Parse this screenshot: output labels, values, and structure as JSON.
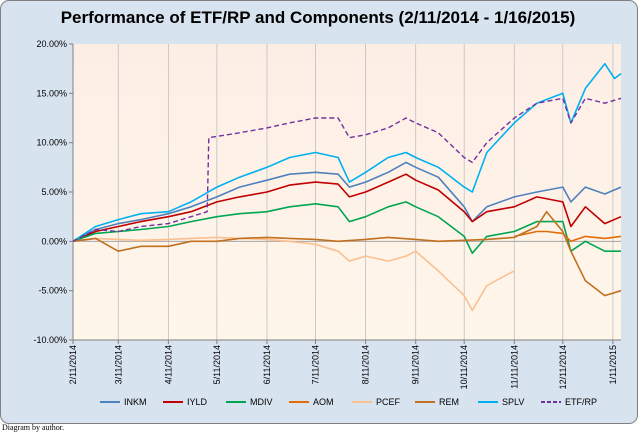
{
  "caption": "Diagram by author.",
  "chart_data": {
    "type": "line",
    "title": "Performance of ETF/RP and Components (2/11/2014  - 1/16/2015)",
    "xlabel": "",
    "ylabel": "",
    "ylim": [
      -0.1,
      0.2
    ],
    "y_ticks": [
      -0.1,
      -0.05,
      0.0,
      0.05,
      0.1,
      0.15,
      0.2
    ],
    "y_tick_labels": [
      "-10.00%",
      "-5.00%",
      "0.00%",
      "5.00%",
      "10.00%",
      "15.00%",
      "20.00%"
    ],
    "x_start": "2014-02-11",
    "x_end": "2015-01-16",
    "x_ticks": [
      "2014-02-11",
      "2014-03-11",
      "2014-04-11",
      "2014-05-11",
      "2014-06-11",
      "2014-07-11",
      "2014-08-11",
      "2014-09-11",
      "2014-10-11",
      "2014-11-11",
      "2014-12-11",
      "2015-01-11"
    ],
    "x_tick_labels": [
      "2/11/2014",
      "3/11/2014",
      "4/11/2014",
      "5/11/2014",
      "6/11/2014",
      "7/11/2014",
      "8/11/2014",
      "9/11/2014",
      "10/11/2014",
      "11/11/2014",
      "12/11/2014",
      "1/11/2015"
    ],
    "grid": "vertical",
    "legend_position": "bottom",
    "series": [
      {
        "name": "INKM",
        "color": "#4f81bd",
        "dash": false,
        "points": [
          [
            "2014-02-11",
            0.0
          ],
          [
            "2014-02-25",
            0.012
          ],
          [
            "2014-03-11",
            0.018
          ],
          [
            "2014-03-25",
            0.022
          ],
          [
            "2014-04-11",
            0.028
          ],
          [
            "2014-04-25",
            0.035
          ],
          [
            "2014-05-11",
            0.045
          ],
          [
            "2014-05-25",
            0.055
          ],
          [
            "2014-06-11",
            0.062
          ],
          [
            "2014-06-25",
            0.068
          ],
          [
            "2014-07-11",
            0.07
          ],
          [
            "2014-07-25",
            0.068
          ],
          [
            "2014-08-01",
            0.055
          ],
          [
            "2014-08-11",
            0.06
          ],
          [
            "2014-08-25",
            0.07
          ],
          [
            "2014-09-05",
            0.08
          ],
          [
            "2014-09-11",
            0.075
          ],
          [
            "2014-09-25",
            0.065
          ],
          [
            "2014-10-11",
            0.035
          ],
          [
            "2014-10-16",
            0.02
          ],
          [
            "2014-10-25",
            0.035
          ],
          [
            "2014-11-11",
            0.045
          ],
          [
            "2014-11-25",
            0.05
          ],
          [
            "2014-12-11",
            0.055
          ],
          [
            "2014-12-16",
            0.04
          ],
          [
            "2014-12-25",
            0.055
          ],
          [
            "2015-01-06",
            0.048
          ],
          [
            "2015-01-16",
            0.055
          ]
        ]
      },
      {
        "name": "IYLD",
        "color": "#c00000",
        "dash": false,
        "points": [
          [
            "2014-02-11",
            0.0
          ],
          [
            "2014-02-25",
            0.01
          ],
          [
            "2014-03-11",
            0.015
          ],
          [
            "2014-03-25",
            0.02
          ],
          [
            "2014-04-11",
            0.025
          ],
          [
            "2014-04-25",
            0.03
          ],
          [
            "2014-05-11",
            0.04
          ],
          [
            "2014-05-25",
            0.045
          ],
          [
            "2014-06-11",
            0.05
          ],
          [
            "2014-06-25",
            0.057
          ],
          [
            "2014-07-11",
            0.06
          ],
          [
            "2014-07-25",
            0.058
          ],
          [
            "2014-08-01",
            0.045
          ],
          [
            "2014-08-11",
            0.05
          ],
          [
            "2014-08-25",
            0.06
          ],
          [
            "2014-09-05",
            0.068
          ],
          [
            "2014-09-11",
            0.062
          ],
          [
            "2014-09-25",
            0.052
          ],
          [
            "2014-10-11",
            0.03
          ],
          [
            "2014-10-16",
            0.02
          ],
          [
            "2014-10-25",
            0.03
          ],
          [
            "2014-11-11",
            0.035
          ],
          [
            "2014-11-25",
            0.045
          ],
          [
            "2014-12-11",
            0.04
          ],
          [
            "2014-12-16",
            0.015
          ],
          [
            "2014-12-25",
            0.035
          ],
          [
            "2015-01-06",
            0.018
          ],
          [
            "2015-01-16",
            0.025
          ]
        ]
      },
      {
        "name": "MDIV",
        "color": "#00a651",
        "dash": false,
        "points": [
          [
            "2014-02-11",
            0.0
          ],
          [
            "2014-02-25",
            0.008
          ],
          [
            "2014-03-11",
            0.01
          ],
          [
            "2014-03-25",
            0.012
          ],
          [
            "2014-04-11",
            0.015
          ],
          [
            "2014-04-25",
            0.02
          ],
          [
            "2014-05-11",
            0.025
          ],
          [
            "2014-05-25",
            0.028
          ],
          [
            "2014-06-11",
            0.03
          ],
          [
            "2014-06-25",
            0.035
          ],
          [
            "2014-07-11",
            0.038
          ],
          [
            "2014-07-25",
            0.035
          ],
          [
            "2014-08-01",
            0.02
          ],
          [
            "2014-08-11",
            0.025
          ],
          [
            "2014-08-25",
            0.035
          ],
          [
            "2014-09-05",
            0.04
          ],
          [
            "2014-09-11",
            0.035
          ],
          [
            "2014-09-25",
            0.025
          ],
          [
            "2014-10-11",
            0.005
          ],
          [
            "2014-10-16",
            -0.012
          ],
          [
            "2014-10-25",
            0.005
          ],
          [
            "2014-11-11",
            0.01
          ],
          [
            "2014-11-25",
            0.02
          ],
          [
            "2014-12-11",
            0.02
          ],
          [
            "2014-12-16",
            -0.01
          ],
          [
            "2014-12-25",
            0.0
          ],
          [
            "2015-01-06",
            -0.01
          ],
          [
            "2015-01-16",
            -0.01
          ]
        ]
      },
      {
        "name": "AOM",
        "color": "#e36c09",
        "dash": false,
        "points": [
          [
            "2014-11-11",
            0.005
          ],
          [
            "2014-11-25",
            0.01
          ],
          [
            "2014-12-01",
            0.01
          ],
          [
            "2014-12-11",
            0.008
          ],
          [
            "2014-12-16",
            0.0
          ],
          [
            "2014-12-25",
            0.005
          ],
          [
            "2015-01-06",
            0.003
          ],
          [
            "2015-01-16",
            0.005
          ]
        ]
      },
      {
        "name": "PCEF",
        "color": "#fac090",
        "dash": false,
        "points": [
          [
            "2014-02-11",
            0.0
          ],
          [
            "2014-02-25",
            0.003
          ],
          [
            "2014-03-11",
            0.002
          ],
          [
            "2014-03-25",
            0.001
          ],
          [
            "2014-04-11",
            0.002
          ],
          [
            "2014-04-25",
            0.003
          ],
          [
            "2014-05-11",
            0.004
          ],
          [
            "2014-05-25",
            0.003
          ],
          [
            "2014-06-11",
            0.002
          ],
          [
            "2014-06-25",
            0.0
          ],
          [
            "2014-07-11",
            -0.003
          ],
          [
            "2014-07-25",
            -0.01
          ],
          [
            "2014-08-01",
            -0.02
          ],
          [
            "2014-08-11",
            -0.015
          ],
          [
            "2014-08-25",
            -0.02
          ],
          [
            "2014-09-05",
            -0.015
          ],
          [
            "2014-09-11",
            -0.01
          ],
          [
            "2014-09-25",
            -0.03
          ],
          [
            "2014-10-11",
            -0.055
          ],
          [
            "2014-10-16",
            -0.07
          ],
          [
            "2014-10-25",
            -0.045
          ],
          [
            "2014-11-05",
            -0.035
          ],
          [
            "2014-11-11",
            -0.03
          ]
        ]
      },
      {
        "name": "REM",
        "color": "#c0701f",
        "dash": false,
        "points": [
          [
            "2014-02-11",
            0.0
          ],
          [
            "2014-02-25",
            0.003
          ],
          [
            "2014-03-11",
            -0.01
          ],
          [
            "2014-03-25",
            -0.005
          ],
          [
            "2014-04-11",
            -0.005
          ],
          [
            "2014-04-25",
            0.0
          ],
          [
            "2014-05-11",
            0.0
          ],
          [
            "2014-05-25",
            0.003
          ],
          [
            "2014-06-11",
            0.004
          ],
          [
            "2014-06-25",
            0.003
          ],
          [
            "2014-07-11",
            0.002
          ],
          [
            "2014-07-25",
            0.0
          ],
          [
            "2014-08-11",
            0.002
          ],
          [
            "2014-08-25",
            0.004
          ],
          [
            "2014-09-11",
            0.002
          ],
          [
            "2014-09-25",
            0.0
          ],
          [
            "2014-10-11",
            0.001
          ],
          [
            "2014-10-25",
            0.002
          ],
          [
            "2014-11-11",
            0.004
          ],
          [
            "2014-11-25",
            0.015
          ],
          [
            "2014-12-01",
            0.03
          ],
          [
            "2014-12-06",
            0.02
          ],
          [
            "2014-12-11",
            0.01
          ],
          [
            "2014-12-16",
            -0.01
          ],
          [
            "2014-12-25",
            -0.04
          ],
          [
            "2015-01-06",
            -0.055
          ],
          [
            "2015-01-16",
            -0.05
          ]
        ]
      },
      {
        "name": "SPLV",
        "color": "#00b0f0",
        "dash": false,
        "points": [
          [
            "2014-02-11",
            0.0
          ],
          [
            "2014-02-25",
            0.015
          ],
          [
            "2014-03-11",
            0.022
          ],
          [
            "2014-03-25",
            0.028
          ],
          [
            "2014-04-11",
            0.03
          ],
          [
            "2014-04-25",
            0.04
          ],
          [
            "2014-05-11",
            0.055
          ],
          [
            "2014-05-25",
            0.065
          ],
          [
            "2014-06-11",
            0.075
          ],
          [
            "2014-06-25",
            0.085
          ],
          [
            "2014-07-11",
            0.09
          ],
          [
            "2014-07-25",
            0.085
          ],
          [
            "2014-08-01",
            0.06
          ],
          [
            "2014-08-11",
            0.07
          ],
          [
            "2014-08-25",
            0.085
          ],
          [
            "2014-09-05",
            0.09
          ],
          [
            "2014-09-11",
            0.085
          ],
          [
            "2014-09-25",
            0.075
          ],
          [
            "2014-10-11",
            0.055
          ],
          [
            "2014-10-16",
            0.05
          ],
          [
            "2014-10-25",
            0.09
          ],
          [
            "2014-11-11",
            0.12
          ],
          [
            "2014-11-25",
            0.14
          ],
          [
            "2014-12-11",
            0.15
          ],
          [
            "2014-12-16",
            0.12
          ],
          [
            "2014-12-25",
            0.155
          ],
          [
            "2015-01-06",
            0.18
          ],
          [
            "2015-01-12",
            0.165
          ],
          [
            "2015-01-16",
            0.17
          ]
        ]
      },
      {
        "name": "ETF/RP",
        "color": "#7030a0",
        "dash": true,
        "points": [
          [
            "2014-02-11",
            0.0
          ],
          [
            "2014-02-25",
            0.012
          ],
          [
            "2014-03-11",
            0.01
          ],
          [
            "2014-03-25",
            0.015
          ],
          [
            "2014-04-11",
            0.018
          ],
          [
            "2014-04-25",
            0.025
          ],
          [
            "2014-05-05",
            0.03
          ],
          [
            "2014-05-06",
            0.105
          ],
          [
            "2014-05-25",
            0.11
          ],
          [
            "2014-06-11",
            0.115
          ],
          [
            "2014-06-25",
            0.12
          ],
          [
            "2014-07-11",
            0.125
          ],
          [
            "2014-07-25",
            0.125
          ],
          [
            "2014-08-01",
            0.105
          ],
          [
            "2014-08-11",
            0.108
          ],
          [
            "2014-08-25",
            0.115
          ],
          [
            "2014-09-05",
            0.125
          ],
          [
            "2014-09-11",
            0.12
          ],
          [
            "2014-09-25",
            0.11
          ],
          [
            "2014-10-11",
            0.085
          ],
          [
            "2014-10-16",
            0.08
          ],
          [
            "2014-10-25",
            0.1
          ],
          [
            "2014-11-11",
            0.125
          ],
          [
            "2014-11-25",
            0.14
          ],
          [
            "2014-12-11",
            0.145
          ],
          [
            "2014-12-16",
            0.12
          ],
          [
            "2014-12-25",
            0.145
          ],
          [
            "2015-01-06",
            0.14
          ],
          [
            "2015-01-16",
            0.145
          ]
        ]
      }
    ]
  }
}
